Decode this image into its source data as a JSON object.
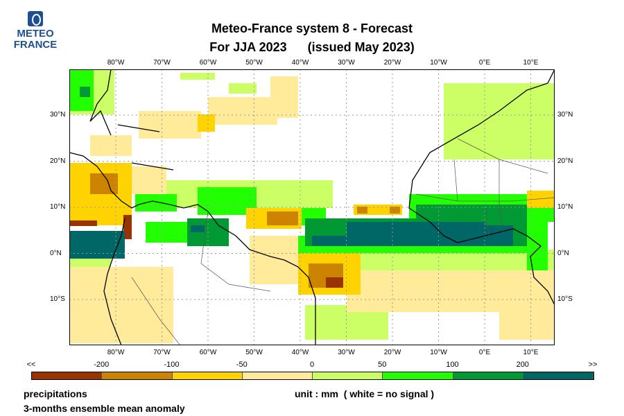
{
  "logo": {
    "line1": "METEO",
    "line2": "FRANCE"
  },
  "title": {
    "line1": "Meteo-France system 8  -  Forecast",
    "line2": "For JJA 2023      (issued May 2023)"
  },
  "chart_data": {
    "type": "heatmap",
    "title": "Meteo-France system 8 - Forecast For JJA 2023 (issued May 2023)",
    "lon_ticks": [
      "80°W",
      "70°W",
      "60°W",
      "50°W",
      "40°W",
      "30°W",
      "20°W",
      "10°W",
      "0°E",
      "10°E"
    ],
    "lat_ticks": [
      "30°N",
      "20°N",
      "10°N",
      "0°N",
      "10°S"
    ],
    "colorbar": {
      "labels": [
        "<<",
        "-200",
        "-100",
        "-50",
        "0",
        "50",
        "100",
        "200",
        ">>"
      ],
      "colors": [
        "#993300",
        "#cc8400",
        "#ffd300",
        "#ffeb99",
        "#ccff66",
        "#22ff00",
        "#009933",
        "#006666"
      ]
    },
    "variable": "precipitations",
    "description": "3-months ensemble mean anomaly",
    "unit": "unit : mm  ( white = no signal )"
  }
}
